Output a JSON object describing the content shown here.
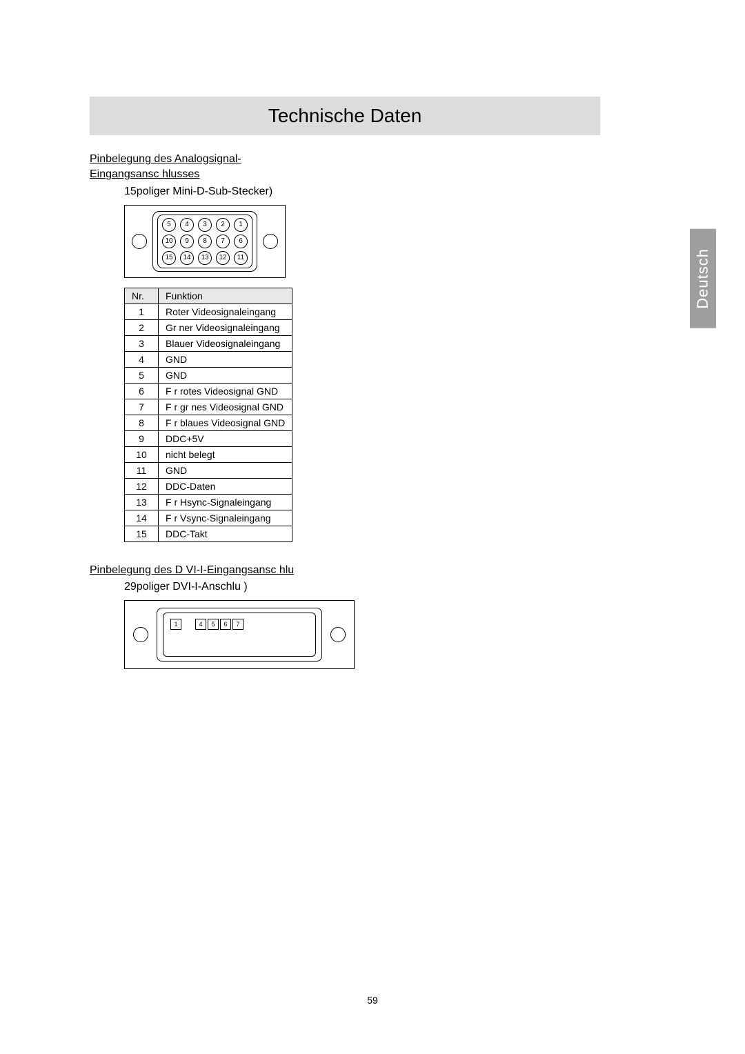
{
  "title": "Technische Daten",
  "side_tab": "Deutsch",
  "page_number": "59",
  "analog": {
    "heading_line1": "Pinbelegung des Analogsignal-",
    "heading_line2": "Eingangsansc hlusses",
    "subhead": "15poliger Mini-D-Sub-Stecker)",
    "pin_layout": {
      "row1": [
        "5",
        "4",
        "3",
        "2",
        "1"
      ],
      "row2": [
        "10",
        "9",
        "8",
        "7",
        "6"
      ],
      "row3": [
        "15",
        "14",
        "13",
        "12",
        "11"
      ]
    },
    "table": {
      "col_nr": "Nr.",
      "col_fn": "Funktion",
      "rows": [
        {
          "nr": "1",
          "fn": "Roter Videosignaleingang"
        },
        {
          "nr": "2",
          "fn": "Gr ner Videosignaleingang"
        },
        {
          "nr": "3",
          "fn": "Blauer Videosignaleingang"
        },
        {
          "nr": "4",
          "fn": "GND"
        },
        {
          "nr": "5",
          "fn": "GND"
        },
        {
          "nr": "6",
          "fn": "F r rotes Videosignal GND"
        },
        {
          "nr": "7",
          "fn": "F r gr nes Videosignal GND"
        },
        {
          "nr": "8",
          "fn": "F r blaues Videosignal GND"
        },
        {
          "nr": "9",
          "fn": "DDC+5V"
        },
        {
          "nr": "10",
          "fn": "nicht belegt"
        },
        {
          "nr": "11",
          "fn": "GND"
        },
        {
          "nr": "12",
          "fn": "DDC-Daten"
        },
        {
          "nr": "13",
          "fn": "F r Hsync-Signaleingang"
        },
        {
          "nr": "14",
          "fn": "F r Vsync-Signaleingang"
        },
        {
          "nr": "15",
          "fn": "DDC-Takt"
        }
      ]
    }
  },
  "dvi": {
    "heading": "Pinbelegung des D VI-I-Eingangsansc hlu",
    "subhead": "29poliger DVI-I-Anschlu )",
    "left_pins": [
      "1"
    ],
    "right_pins": [
      "4",
      "5",
      "6",
      "7"
    ]
  },
  "colors": {
    "title_bg": "#dcdcdc",
    "tab_bg": "#9e9e9e",
    "tab_fg": "#ffffff",
    "th_bg": "#e8e8e8",
    "border": "#000000",
    "page_bg": "#ffffff",
    "text": "#000000"
  }
}
